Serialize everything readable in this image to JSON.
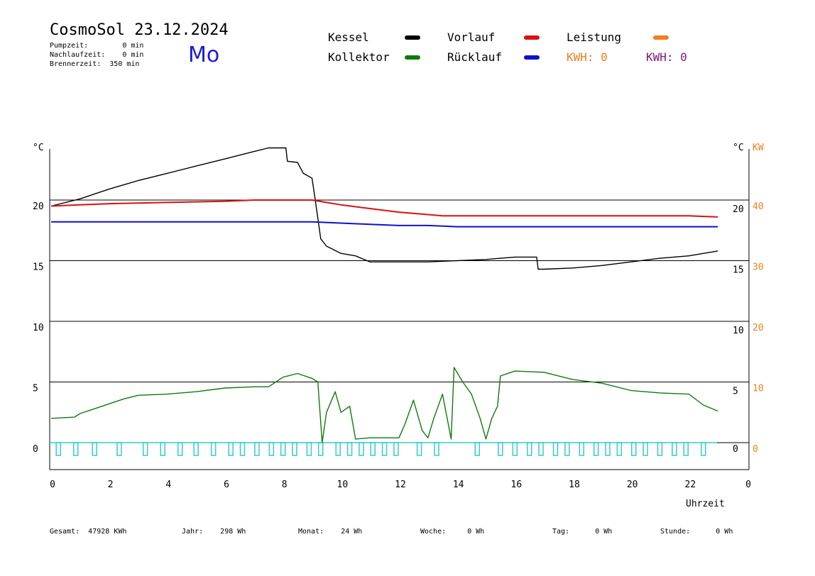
{
  "header": {
    "title": "CosmoSol 23.12.2024",
    "day": "Mo",
    "pumpzeit": "Pumpzeit:        0 min",
    "nachlaufzeit": "Nachlaufzeit:    0 min",
    "brennerzeit": "Brennerzeit:  350 min"
  },
  "legend": {
    "kessel": "Kessel",
    "kollektor": "Kollektor",
    "vorlauf": "Vorlauf",
    "ruecklauf": "Rücklauf",
    "leistung": "Leistung",
    "kwh1": "KWH: 0",
    "kwh2": "KWH: 0"
  },
  "colors": {
    "kessel": "#000000",
    "kollektor": "#0f7a0f",
    "vorlauf": "#d81212",
    "ruecklauf": "#1010cc",
    "leistung": "#f0801a",
    "kwh2": "#7a1a7a",
    "pump": "#33cccc"
  },
  "footer": {
    "gesamt": "Gesamt:  47928 KWh",
    "jahr": "Jahr:    298 Wh",
    "monat": "Monat:    24 Wh",
    "woche": "Woche:     0 Wh",
    "tag": "Tag:      0 Wh",
    "stunde": "Stunde:      0 Wh"
  },
  "chart_data": {
    "type": "line",
    "xlabel": "Uhrzeit",
    "ylabel_left": "°C",
    "ylabel_right": "°C",
    "ylabel_right2": "KW",
    "xlim": [
      0,
      24
    ],
    "ylim": [
      -2,
      25
    ],
    "x_tick_labels": [
      "0",
      "2",
      "4",
      "6",
      "8",
      "10",
      "12",
      "14",
      "16",
      "18",
      "20",
      "22",
      "0"
    ],
    "y_left_ticks": [
      "0",
      "5",
      "10",
      "15",
      "20"
    ],
    "y_right_ticks": [
      "0",
      "5",
      "10",
      "15",
      "20"
    ],
    "y_right2_ticks": [
      "0",
      "10",
      "20",
      "30",
      "40"
    ],
    "grid_y": [
      5,
      10,
      15,
      20
    ],
    "series": [
      {
        "name": "Kessel",
        "x": [
          0,
          1,
          2,
          3,
          4,
          5,
          6,
          7,
          7.5,
          8.1,
          8.15,
          8.5,
          8.7,
          9.0,
          9.1,
          9.2,
          9.3,
          9.5,
          10,
          10.5,
          11,
          12,
          13,
          14,
          15,
          15.5,
          16,
          16.75,
          16.8,
          17,
          18,
          19,
          20,
          21,
          22,
          23
        ],
        "y": [
          19.5,
          20.1,
          20.9,
          21.6,
          22.2,
          22.8,
          23.4,
          24.0,
          24.3,
          24.3,
          23.2,
          23.1,
          22.2,
          21.8,
          20.2,
          18.5,
          16.8,
          16.2,
          15.6,
          15.4,
          14.9,
          14.9,
          14.9,
          15.0,
          15.1,
          15.2,
          15.3,
          15.3,
          14.3,
          14.3,
          14.4,
          14.6,
          14.9,
          15.2,
          15.4,
          15.8
        ]
      },
      {
        "name": "Vorlauf",
        "x": [
          0,
          1,
          2,
          4,
          6,
          7,
          8,
          9,
          9.5,
          10,
          11,
          12,
          13,
          13.5,
          14,
          16,
          18,
          20,
          22,
          23
        ],
        "y": [
          19.5,
          19.6,
          19.7,
          19.8,
          19.9,
          20.0,
          20.0,
          20.0,
          19.8,
          19.6,
          19.3,
          19.0,
          18.8,
          18.7,
          18.7,
          18.7,
          18.7,
          18.7,
          18.7,
          18.6
        ]
      },
      {
        "name": "Rücklauf",
        "x": [
          0,
          2,
          4,
          6,
          8,
          9,
          10,
          11,
          12,
          13,
          14,
          16,
          18,
          20,
          22,
          23
        ],
        "y": [
          18.2,
          18.2,
          18.2,
          18.2,
          18.2,
          18.2,
          18.1,
          18.0,
          17.9,
          17.9,
          17.8,
          17.8,
          17.8,
          17.8,
          17.8,
          17.8
        ]
      },
      {
        "name": "Kollektor",
        "x": [
          0,
          0.8,
          1,
          2,
          2.5,
          3,
          4,
          5,
          6,
          7,
          7.5,
          8,
          8.5,
          9,
          9.2,
          9.35,
          9.5,
          9.8,
          10,
          10.3,
          10.5,
          11,
          11.5,
          12,
          12.2,
          12.5,
          12.8,
          13,
          13.2,
          13.5,
          13.8,
          13.9,
          14.2,
          14.5,
          14.8,
          15,
          15.2,
          15.4,
          15.5,
          16,
          17,
          18,
          19,
          20,
          21,
          22,
          22.5,
          23
        ],
        "y": [
          2.0,
          2.1,
          2.4,
          3.2,
          3.6,
          3.9,
          4.0,
          4.2,
          4.5,
          4.6,
          4.6,
          5.4,
          5.7,
          5.3,
          5.0,
          0.0,
          2.5,
          4.2,
          2.5,
          3.0,
          0.3,
          0.4,
          0.4,
          0.4,
          1.5,
          3.5,
          1.0,
          0.4,
          2.0,
          4.0,
          0.3,
          6.2,
          5.0,
          4.0,
          2.0,
          0.3,
          2.0,
          3.0,
          5.5,
          5.9,
          5.8,
          5.2,
          4.9,
          4.3,
          4.1,
          4.0,
          3.1,
          2.6
        ]
      },
      {
        "name": "Leistung",
        "x": [
          0,
          23
        ],
        "y": [
          0,
          0
        ]
      }
    ],
    "pump_pulses_hours": [
      0.25,
      0.85,
      1.5,
      2.35,
      3.25,
      3.85,
      4.45,
      5.0,
      5.6,
      6.2,
      6.6,
      7.1,
      7.6,
      8.0,
      8.4,
      8.9,
      9.3,
      9.9,
      10.3,
      10.7,
      11.1,
      11.5,
      11.9,
      12.7,
      13.3,
      14.7,
      15.5,
      16.0,
      16.5,
      16.9,
      17.4,
      17.8,
      18.3,
      18.8,
      19.2,
      19.6,
      20.1,
      20.5,
      21.0,
      21.5,
      21.9,
      22.5
    ]
  }
}
